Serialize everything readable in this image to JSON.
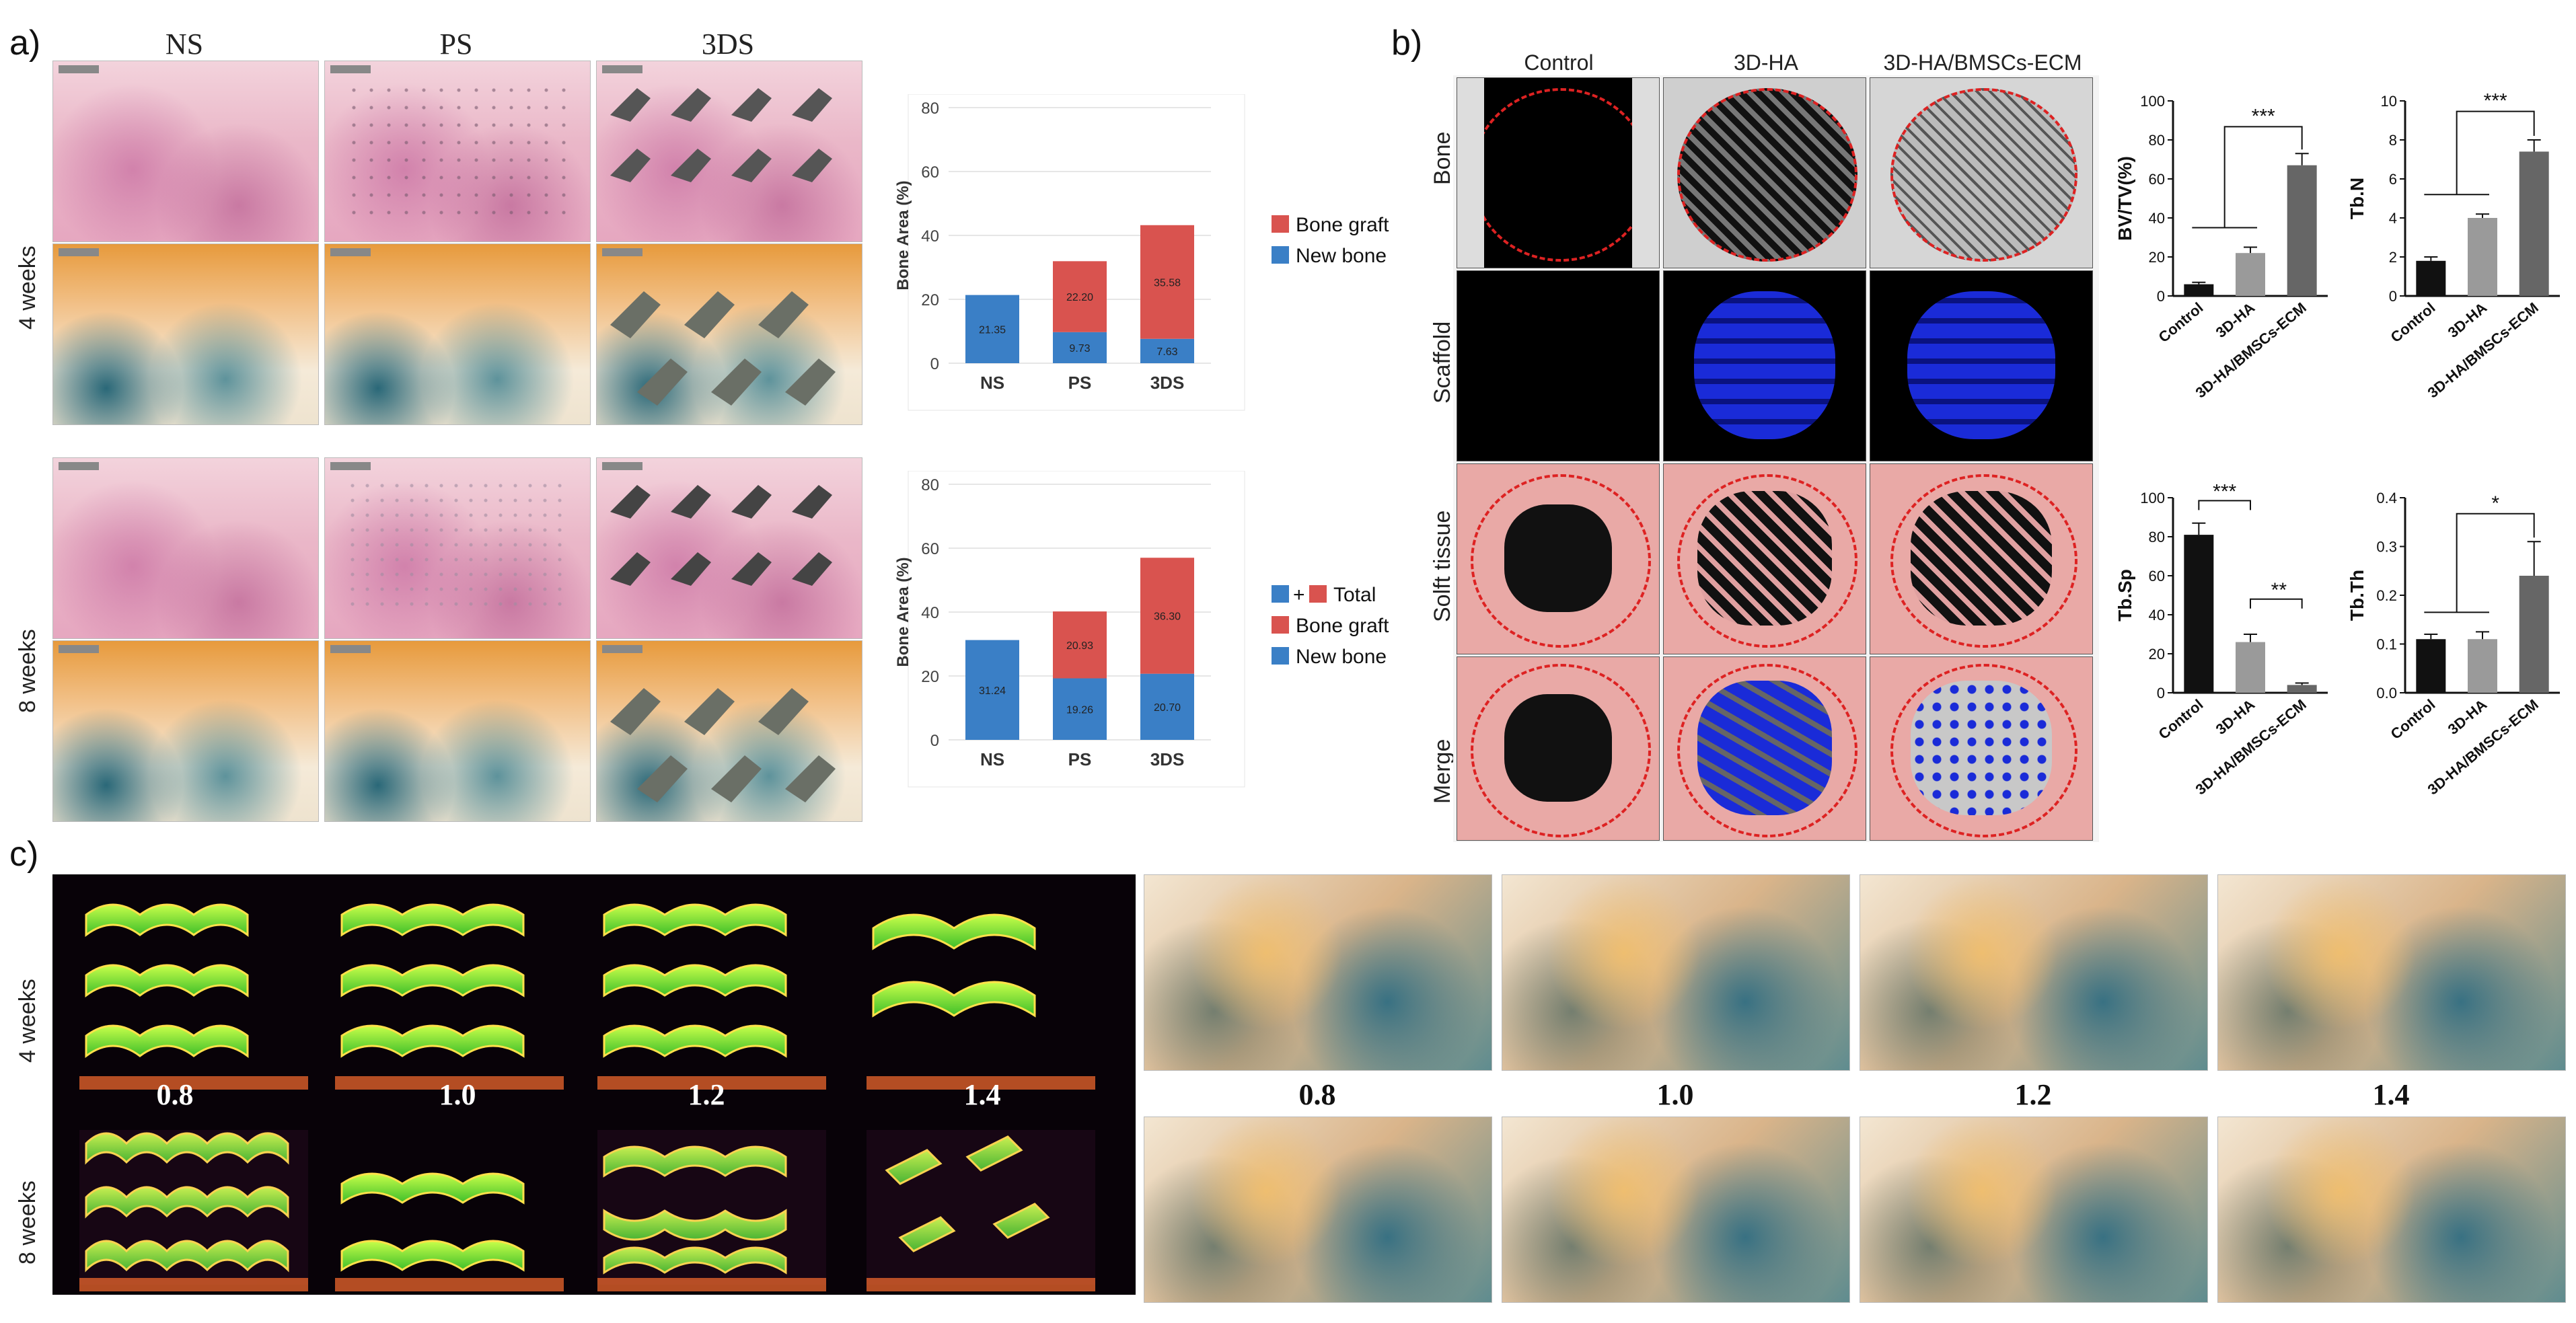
{
  "panels": {
    "a": {
      "letter": "a)",
      "columns": [
        "NS",
        "PS",
        "3DS"
      ],
      "rows": [
        "4 weeks",
        "8 weeks"
      ],
      "charts": [
        {
          "type": "bar",
          "stacked": true,
          "categories": [
            "NS",
            "PS",
            "3DS"
          ],
          "ylabel": "Bone Area (%)",
          "ylim": [
            0,
            80
          ],
          "yticks": [
            0,
            20,
            40,
            60,
            80
          ],
          "series": [
            {
              "name": "New bone",
              "color": "#3a7fc6",
              "values": [
                21.35,
                9.73,
                7.63
              ]
            },
            {
              "name": "Bone graft",
              "color": "#d9534f",
              "values": [
                0,
                22.2,
                35.58
              ]
            }
          ],
          "data_labels": [
            "21.35",
            "9.73",
            "7.63",
            "",
            "22.20",
            "35.58"
          ],
          "legend": [
            {
              "label": "Bone graft",
              "color": "#d9534f"
            },
            {
              "label": "New bone",
              "color": "#3a7fc6"
            }
          ]
        },
        {
          "type": "bar",
          "stacked": true,
          "categories": [
            "NS",
            "PS",
            "3DS"
          ],
          "ylabel": "Bone Area (%)",
          "ylim": [
            0,
            80
          ],
          "yticks": [
            0,
            20,
            40,
            60,
            80
          ],
          "series": [
            {
              "name": "New bone",
              "color": "#3a7fc6",
              "values": [
                31.24,
                19.26,
                20.7
              ]
            },
            {
              "name": "Bone graft",
              "color": "#d9534f",
              "values": [
                0,
                20.93,
                36.3
              ]
            }
          ],
          "data_labels": [
            "31.24",
            "19.26",
            "20.70",
            "",
            "20.93",
            "36.30"
          ],
          "legend": [
            {
              "label": "Total",
              "color": "#d9534f",
              "prefix": "+"
            },
            {
              "label": "Bone graft",
              "color": "#d9534f"
            },
            {
              "label": "New bone",
              "color": "#3a7fc6"
            }
          ]
        }
      ]
    },
    "b": {
      "letter": "b)",
      "columns": [
        "Control",
        "3D-HA",
        "3D-HA/BMSCs-ECM"
      ],
      "rows": [
        "Bone",
        "Scaffold",
        "Solft tissue",
        "Merge"
      ],
      "charts": [
        {
          "type": "bar",
          "categories": [
            "Control",
            "3D-HA",
            "3D-HA/BMSCs-ECM"
          ],
          "values": [
            6,
            22,
            67
          ],
          "errors": [
            1,
            3,
            6
          ],
          "colors": [
            "#111111",
            "#9a9a9a",
            "#666666"
          ],
          "ylabel": "BV/TV(%)",
          "ylim": [
            0,
            100
          ],
          "yticks": [
            0,
            20,
            40,
            60,
            80,
            100
          ],
          "significance": "***"
        },
        {
          "type": "bar",
          "categories": [
            "Control",
            "3D-HA",
            "3D-HA/BMSCs-ECM"
          ],
          "values": [
            1.8,
            4.0,
            7.4
          ],
          "errors": [
            0.2,
            0.2,
            0.6
          ],
          "colors": [
            "#111111",
            "#9a9a9a",
            "#666666"
          ],
          "ylabel": "Tb.N",
          "ylim": [
            0,
            10
          ],
          "yticks": [
            0,
            2,
            4,
            6,
            8,
            10
          ],
          "significance": "***"
        },
        {
          "type": "bar",
          "categories": [
            "Control",
            "3D-HA",
            "3D-HA/BMSCs-ECM"
          ],
          "values": [
            81,
            26,
            4
          ],
          "errors": [
            6,
            4,
            1
          ],
          "colors": [
            "#111111",
            "#9a9a9a",
            "#666666"
          ],
          "ylabel": "Tb.Sp",
          "ylim": [
            0,
            100
          ],
          "yticks": [
            0,
            20,
            40,
            60,
            80,
            100
          ],
          "significance": [
            "***",
            "**"
          ]
        },
        {
          "type": "bar",
          "categories": [
            "Control",
            "3D-HA",
            "3D-HA/BMSCs-ECM"
          ],
          "values": [
            0.11,
            0.11,
            0.24
          ],
          "errors": [
            0.01,
            0.015,
            0.07
          ],
          "colors": [
            "#111111",
            "#9a9a9a",
            "#666666"
          ],
          "ylabel": "Tb.Th",
          "ylim": [
            0,
            0.4
          ],
          "yticks": [
            0.0,
            0.1,
            0.2,
            0.3,
            0.4
          ],
          "significance": "*"
        }
      ]
    },
    "c": {
      "letter": "c)",
      "rows": [
        "4 weeks",
        "8 weeks"
      ],
      "sizes": [
        "0.8",
        "1.0",
        "1.2",
        "1.4"
      ]
    }
  }
}
